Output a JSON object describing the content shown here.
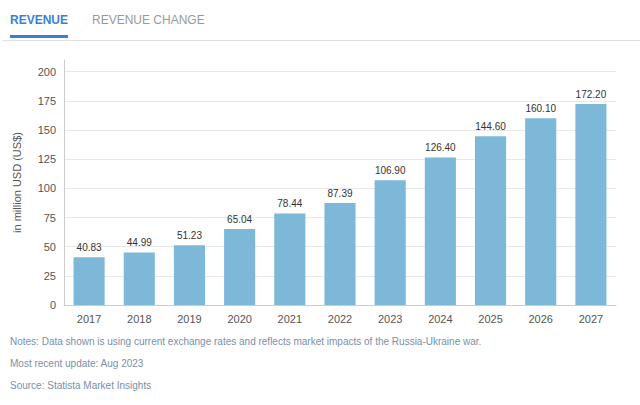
{
  "chart_data": {
    "type": "bar",
    "annotations": [
      "REVENUE",
      "REVENUE CHANGE",
      "Notes: Data shown is using current exchange rates and reflects market impacts of the Russia-Ukraine war.",
      "Most recent update: Aug 2023",
      "Source: Statista Market Insights"
    ],
    "ylabel": "in million USD (US$)",
    "categories": [
      "2017",
      "2018",
      "2019",
      "2020",
      "2021",
      "2022",
      "2023",
      "2024",
      "2025",
      "2026",
      "2027"
    ],
    "values": [
      40.83,
      44.99,
      51.23,
      65.04,
      78.44,
      87.39,
      106.9,
      126.4,
      144.6,
      160.1,
      172.2
    ],
    "value_labels": [
      "40.83",
      "44.99",
      "51.23",
      "65.04",
      "78.44",
      "87.39",
      "106.90",
      "126.40",
      "144.60",
      "160.10",
      "172.20"
    ],
    "color": "#7eb8d8",
    "ylim": [
      0,
      210
    ],
    "yticks": [
      0,
      25,
      50,
      75,
      100,
      125,
      150,
      175,
      200
    ],
    "grid": true,
    "data_labels": true
  }
}
